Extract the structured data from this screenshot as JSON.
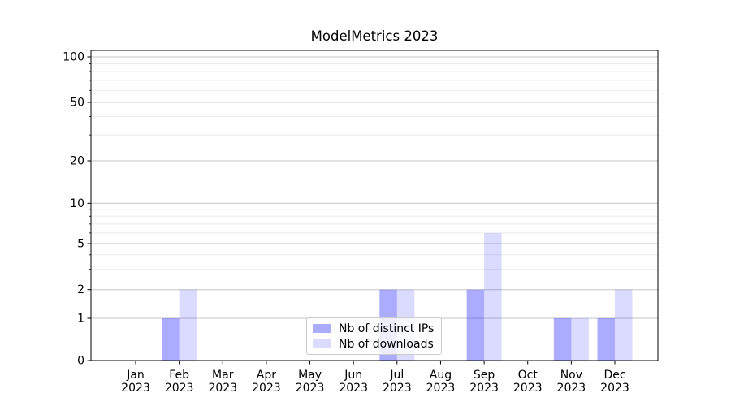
{
  "figure": {
    "title": "ModelMetrics 2023",
    "background_color": "#ffffff"
  },
  "chart_data": {
    "type": "bar",
    "title": "ModelMetrics 2023",
    "categories": [
      "Jan",
      "Feb",
      "Mar",
      "Apr",
      "May",
      "Jun",
      "Jul",
      "Aug",
      "Sep",
      "Oct",
      "Nov",
      "Dec"
    ],
    "category_year": "2023",
    "series": [
      {
        "name": "Nb of distinct IPs",
        "values": [
          0,
          1,
          0,
          0,
          0,
          0,
          2,
          0,
          2,
          0,
          1,
          1
        ],
        "color": "#0000ff",
        "opacity": 0.33
      },
      {
        "name": "Nb of downloads",
        "values": [
          0,
          2,
          0,
          0,
          0,
          0,
          2,
          0,
          6,
          0,
          1,
          2
        ],
        "color": "#0000ff",
        "opacity": 0.14
      }
    ],
    "yticks": [
      0,
      1,
      2,
      5,
      10,
      20,
      50,
      100
    ],
    "yticks_minor": [
      3,
      4,
      6,
      7,
      8,
      9,
      30,
      40,
      60,
      70,
      80,
      90
    ],
    "ylabel": "",
    "xlabel": "",
    "ylim": [
      0,
      110
    ],
    "y_scale": "log-like with linear segment 0-1",
    "grid": "horizontal major and minor",
    "legend_position": "lower center",
    "colors": {
      "grid_major": "#c6c6c6",
      "grid_minor": "#ebebeb",
      "spine": "#000000",
      "tick_label": "#000000",
      "legend_border": "#cccccc"
    }
  }
}
